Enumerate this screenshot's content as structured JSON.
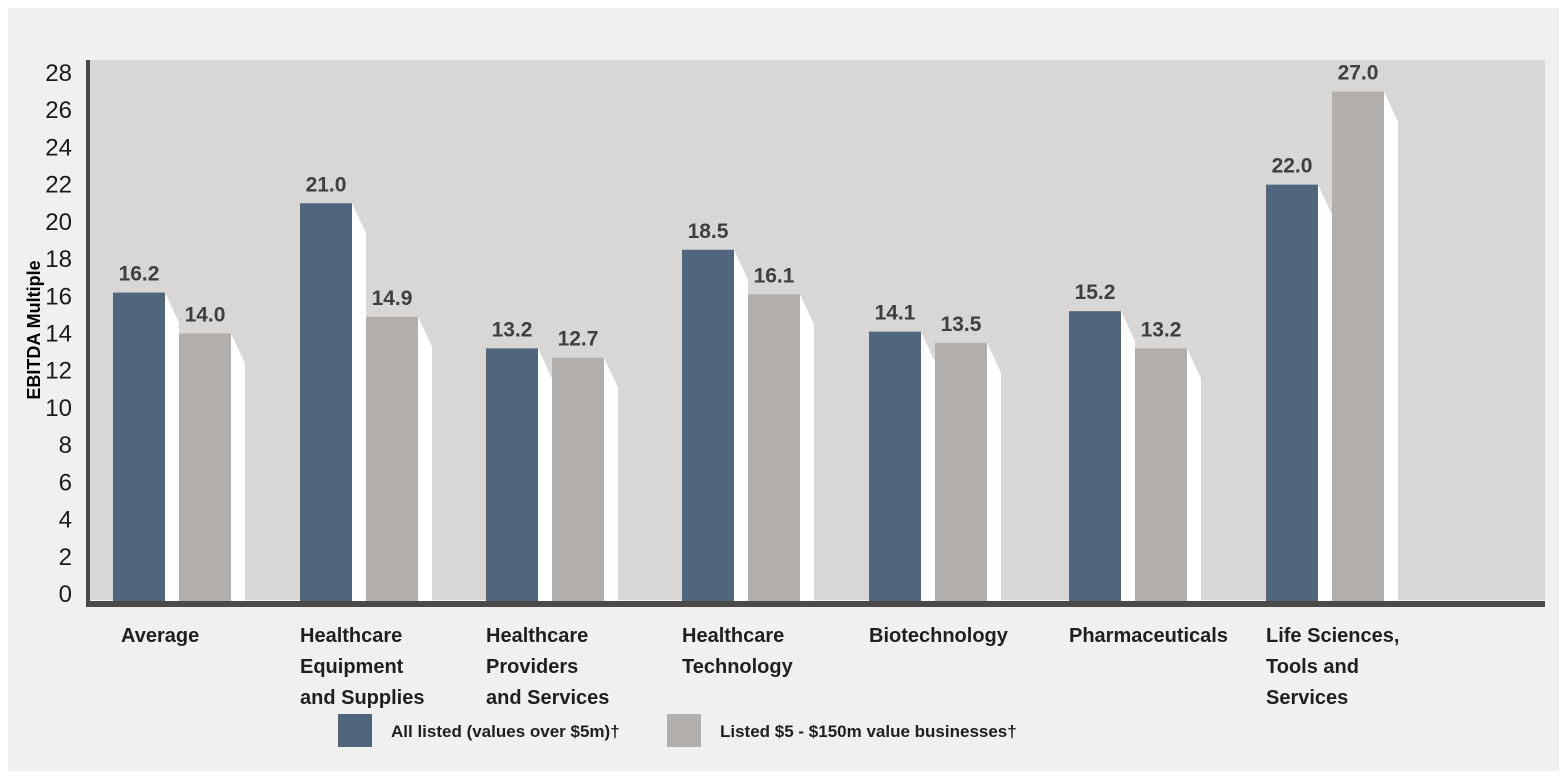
{
  "chart_data": {
    "type": "bar",
    "ylabel": "EBITDA Multiple",
    "ylim": [
      0,
      28
    ],
    "yticks": [
      0,
      2,
      4,
      6,
      8,
      10,
      12,
      14,
      16,
      18,
      20,
      22,
      24,
      26,
      28
    ],
    "categories": [
      "Average",
      "Healthcare Equipment and Supplies",
      "Healthcare Providers and Services",
      "Healthcare Technology",
      "Biotechnology",
      "Pharmaceuticals",
      "Life Sciences, Tools and Services"
    ],
    "category_lines": [
      [
        "Average"
      ],
      [
        "Healthcare",
        "Equipment",
        "and Supplies"
      ],
      [
        "Healthcare",
        "Providers",
        "and Services"
      ],
      [
        "Healthcare",
        "Technology"
      ],
      [
        "Biotechnology"
      ],
      [
        "Pharmaceuticals"
      ],
      [
        "Life Sciences,",
        "Tools and",
        "Services"
      ]
    ],
    "series": [
      {
        "name": "All listed (values over $5m)†",
        "color": "#4f667c",
        "values": [
          16.2,
          21.0,
          13.2,
          18.5,
          14.1,
          15.2,
          22.0
        ],
        "labels": [
          "16.2",
          "21.0",
          "13.2",
          "18.5",
          "14.1",
          "15.2",
          "22.0"
        ]
      },
      {
        "name": "Listed $5 - $150m value businesses†",
        "color": "#b2aeac",
        "values": [
          14.0,
          14.9,
          12.7,
          16.1,
          13.5,
          13.2,
          27.0
        ],
        "labels": [
          "14.0",
          "14.9",
          "12.7",
          "16.1",
          "13.5",
          "13.2",
          "27.0"
        ]
      }
    ],
    "colors": {
      "panel": "#d8d7d5",
      "outer": "#f0f0f0",
      "axis": "#4a4a4a",
      "shadow": "#ffffff"
    },
    "grid": false,
    "legend_position": "bottom"
  }
}
